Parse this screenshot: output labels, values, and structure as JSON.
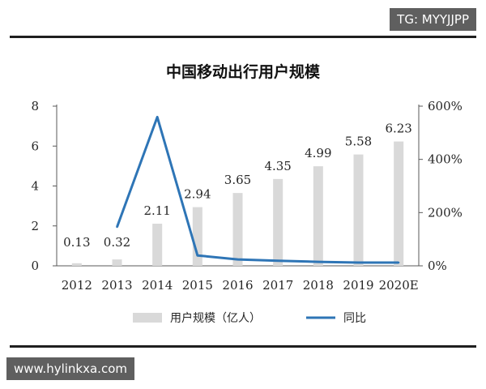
{
  "watermarks": {
    "top": "TG: MYYJJPP",
    "bottom": "www.hylinkxa.com"
  },
  "colors": {
    "bar": "#d9d9d9",
    "line": "#2e75b6",
    "axis": "#595959",
    "rule": "#1f1f1f"
  },
  "chart_data": {
    "type": "bar",
    "title": "中国移动出行用户规模",
    "categories": [
      "2012",
      "2013",
      "2014",
      "2015",
      "2016",
      "2017",
      "2018",
      "2019",
      "2020E"
    ],
    "series": [
      {
        "name": "用户规模（亿人）",
        "type": "bar",
        "axis": "left",
        "values": [
          0.13,
          0.32,
          2.11,
          2.94,
          3.65,
          4.35,
          4.99,
          5.58,
          6.23
        ],
        "labels": [
          "0.13",
          "0.32",
          "2.11",
          "2.94",
          "3.65",
          "4.35",
          "4.99",
          "5.58",
          "6.23"
        ]
      },
      {
        "name": "同比",
        "type": "line",
        "axis": "right",
        "values": [
          null,
          146,
          559,
          39,
          24,
          19,
          15,
          12,
          12
        ]
      }
    ],
    "y_left": {
      "range": [
        0,
        8
      ],
      "ticks": [
        "0",
        "2",
        "4",
        "6",
        "8"
      ]
    },
    "y_right": {
      "range": [
        0,
        600
      ],
      "ticks": [
        "0%",
        "200%",
        "400%",
        "600%"
      ]
    },
    "grid": false,
    "legend_position": "bottom"
  }
}
